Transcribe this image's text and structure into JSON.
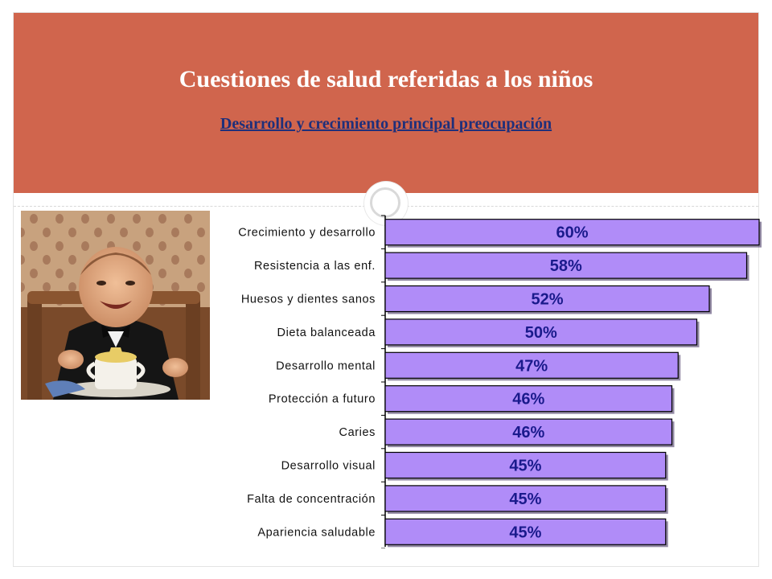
{
  "header": {
    "title": "Cuestiones de salud referidas a los niños",
    "subtitle": "Desarrollo y crecimiento principal preocupación"
  },
  "photo": {
    "icon": "baby-photo"
  },
  "colors": {
    "header_bg": "#d0654d",
    "bar_fill": "#b08cf8",
    "bar_stroke": "#000000",
    "value_text": "#1a1a8c",
    "subtitle_text": "#1f2f7a"
  },
  "chart_data": {
    "type": "bar",
    "orientation": "horizontal",
    "categories": [
      "Crecimiento y desarrollo",
      "Resistencia a las enf.",
      "Huesos y dientes sanos",
      "Dieta balanceada",
      "Desarrollo mental",
      "Protección a futuro",
      "Caries",
      "Desarrollo visual",
      "Falta de concentración",
      "Apariencia saludable"
    ],
    "values": [
      60,
      58,
      52,
      50,
      47,
      46,
      46,
      45,
      45,
      45
    ],
    "data_labels": [
      "60%",
      "58%",
      "52%",
      "50%",
      "47%",
      "46%",
      "46%",
      "45%",
      "45%",
      "45%"
    ],
    "unit": "%",
    "xlim": [
      0,
      60
    ],
    "grid": false,
    "legend": "none"
  }
}
